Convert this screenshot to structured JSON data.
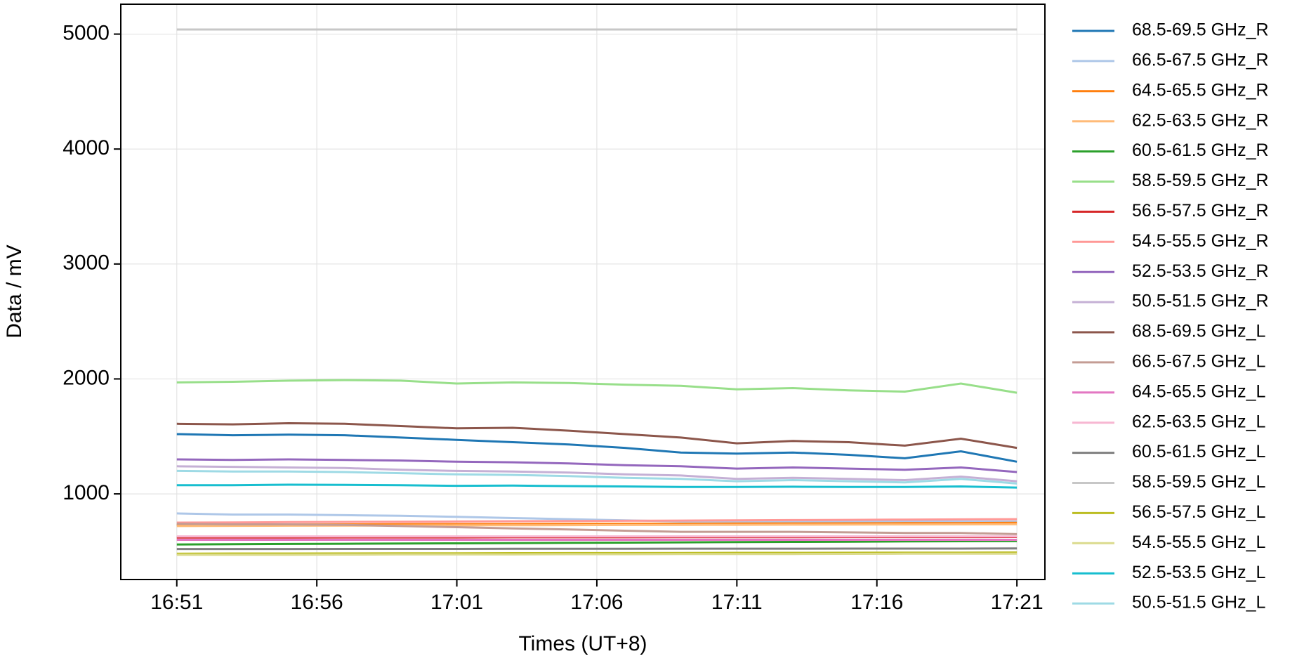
{
  "chart_data": {
    "type": "line",
    "x_label": "Times (UT+8)",
    "y_label": "Data / mV",
    "x": [
      "16:51",
      "16:53",
      "16:55",
      "16:57",
      "16:59",
      "17:01",
      "17:03",
      "17:05",
      "17:07",
      "17:09",
      "17:11",
      "17:13",
      "17:15",
      "17:17",
      "17:19",
      "17:21"
    ],
    "xlim": [
      "16:49",
      "17:22"
    ],
    "xticks": [
      "16:51",
      "16:56",
      "17:01",
      "17:06",
      "17:11",
      "17:16",
      "17:21"
    ],
    "ylim": [
      255,
      5260
    ],
    "yticks": [
      1000,
      2000,
      3000,
      4000,
      5000
    ],
    "grid": true,
    "legend": "outside-right",
    "series": [
      {
        "name": "68.5-69.5 GHz_R",
        "color": "#1f77b4",
        "values": [
          1520,
          1510,
          1515,
          1510,
          1490,
          1470,
          1450,
          1430,
          1400,
          1360,
          1350,
          1360,
          1340,
          1310,
          1370,
          1280
        ]
      },
      {
        "name": "66.5-67.5 GHz_R",
        "color": "#aec7e8",
        "values": [
          830,
          820,
          820,
          815,
          810,
          800,
          790,
          780,
          770,
          760,
          760,
          760,
          760,
          760,
          760,
          760
        ]
      },
      {
        "name": "64.5-65.5 GHz_R",
        "color": "#ff7f0e",
        "values": [
          730,
          732,
          734,
          735,
          736,
          737,
          738,
          739,
          740,
          741,
          742,
          743,
          744,
          745,
          746,
          748
        ]
      },
      {
        "name": "62.5-63.5 GHz_R",
        "color": "#ffbb78",
        "values": [
          720,
          722,
          723,
          724,
          725,
          726,
          727,
          728,
          729,
          730,
          731,
          732,
          733,
          734,
          735,
          736
        ]
      },
      {
        "name": "60.5-61.5 GHz_R",
        "color": "#2ca02c",
        "values": [
          560,
          562,
          564,
          566,
          568,
          570,
          572,
          574,
          576,
          578,
          580,
          582,
          584,
          586,
          588,
          590
        ]
      },
      {
        "name": "58.5-59.5 GHz_R",
        "color": "#98df8a",
        "values": [
          1970,
          1975,
          1985,
          1990,
          1985,
          1960,
          1970,
          1965,
          1950,
          1940,
          1910,
          1920,
          1900,
          1890,
          1960,
          1880
        ]
      },
      {
        "name": "56.5-57.5 GHz_R",
        "color": "#d62728",
        "values": [
          620,
          620,
          620,
          621,
          621,
          621,
          622,
          622,
          622,
          623,
          623,
          623,
          624,
          624,
          624,
          625
        ]
      },
      {
        "name": "54.5-55.5 GHz_R",
        "color": "#ff9896",
        "values": [
          750,
          752,
          754,
          756,
          758,
          760,
          762,
          764,
          766,
          768,
          770,
          772,
          774,
          776,
          778,
          780
        ]
      },
      {
        "name": "52.5-53.5 GHz_R",
        "color": "#9467bd",
        "values": [
          1300,
          1295,
          1300,
          1295,
          1290,
          1280,
          1275,
          1265,
          1250,
          1240,
          1220,
          1230,
          1220,
          1210,
          1230,
          1190
        ]
      },
      {
        "name": "50.5-51.5 GHz_R",
        "color": "#c5b0d5",
        "values": [
          1240,
          1235,
          1230,
          1225,
          1210,
          1200,
          1195,
          1185,
          1170,
          1160,
          1130,
          1140,
          1130,
          1120,
          1150,
          1110
        ]
      },
      {
        "name": "68.5-69.5 GHz_L",
        "color": "#8c564b",
        "values": [
          1610,
          1605,
          1615,
          1610,
          1590,
          1570,
          1575,
          1550,
          1520,
          1490,
          1440,
          1460,
          1450,
          1420,
          1480,
          1400
        ]
      },
      {
        "name": "66.5-67.5 GHz_L",
        "color": "#c49c94",
        "values": [
          740,
          735,
          735,
          730,
          720,
          710,
          700,
          690,
          680,
          670,
          670,
          670,
          665,
          660,
          660,
          650
        ]
      },
      {
        "name": "64.5-65.5 GHz_L",
        "color": "#e377c2",
        "values": [
          600,
          600,
          600,
          600,
          600,
          600,
          600,
          600,
          600,
          600,
          600,
          600,
          600,
          600,
          600,
          600
        ]
      },
      {
        "name": "62.5-63.5 GHz_L",
        "color": "#f7b6d2",
        "values": [
          630,
          630,
          630,
          630,
          630,
          630,
          630,
          630,
          630,
          630,
          630,
          630,
          630,
          630,
          630,
          630
        ]
      },
      {
        "name": "60.5-61.5 GHz_L",
        "color": "#7f7f7f",
        "values": [
          520,
          520,
          520,
          521,
          521,
          521,
          522,
          522,
          522,
          523,
          523,
          523,
          524,
          524,
          524,
          525
        ]
      },
      {
        "name": "58.5-59.5 GHz_L",
        "color": "#c7c7c7",
        "values": [
          5040,
          5040,
          5040,
          5040,
          5040,
          5040,
          5040,
          5040,
          5040,
          5040,
          5040,
          5040,
          5040,
          5040,
          5040,
          5040
        ]
      },
      {
        "name": "56.5-57.5 GHz_L",
        "color": "#bcbd22",
        "values": [
          480,
          481,
          481,
          482,
          483,
          483,
          484,
          485,
          485,
          486,
          487,
          487,
          488,
          489,
          489,
          490
        ]
      },
      {
        "name": "54.5-55.5 GHz_L",
        "color": "#dbdb8d",
        "values": [
          470,
          471,
          471,
          472,
          473,
          473,
          474,
          475,
          475,
          476,
          477,
          477,
          478,
          479,
          479,
          480
        ]
      },
      {
        "name": "52.5-53.5 GHz_L",
        "color": "#17becf",
        "values": [
          1075,
          1075,
          1080,
          1078,
          1075,
          1070,
          1072,
          1068,
          1065,
          1060,
          1060,
          1062,
          1060,
          1060,
          1065,
          1055
        ]
      },
      {
        "name": "50.5-51.5 GHz_L",
        "color": "#9edae5",
        "values": [
          1200,
          1195,
          1195,
          1190,
          1180,
          1170,
          1165,
          1155,
          1140,
          1130,
          1110,
          1120,
          1110,
          1100,
          1130,
          1090
        ]
      }
    ]
  }
}
